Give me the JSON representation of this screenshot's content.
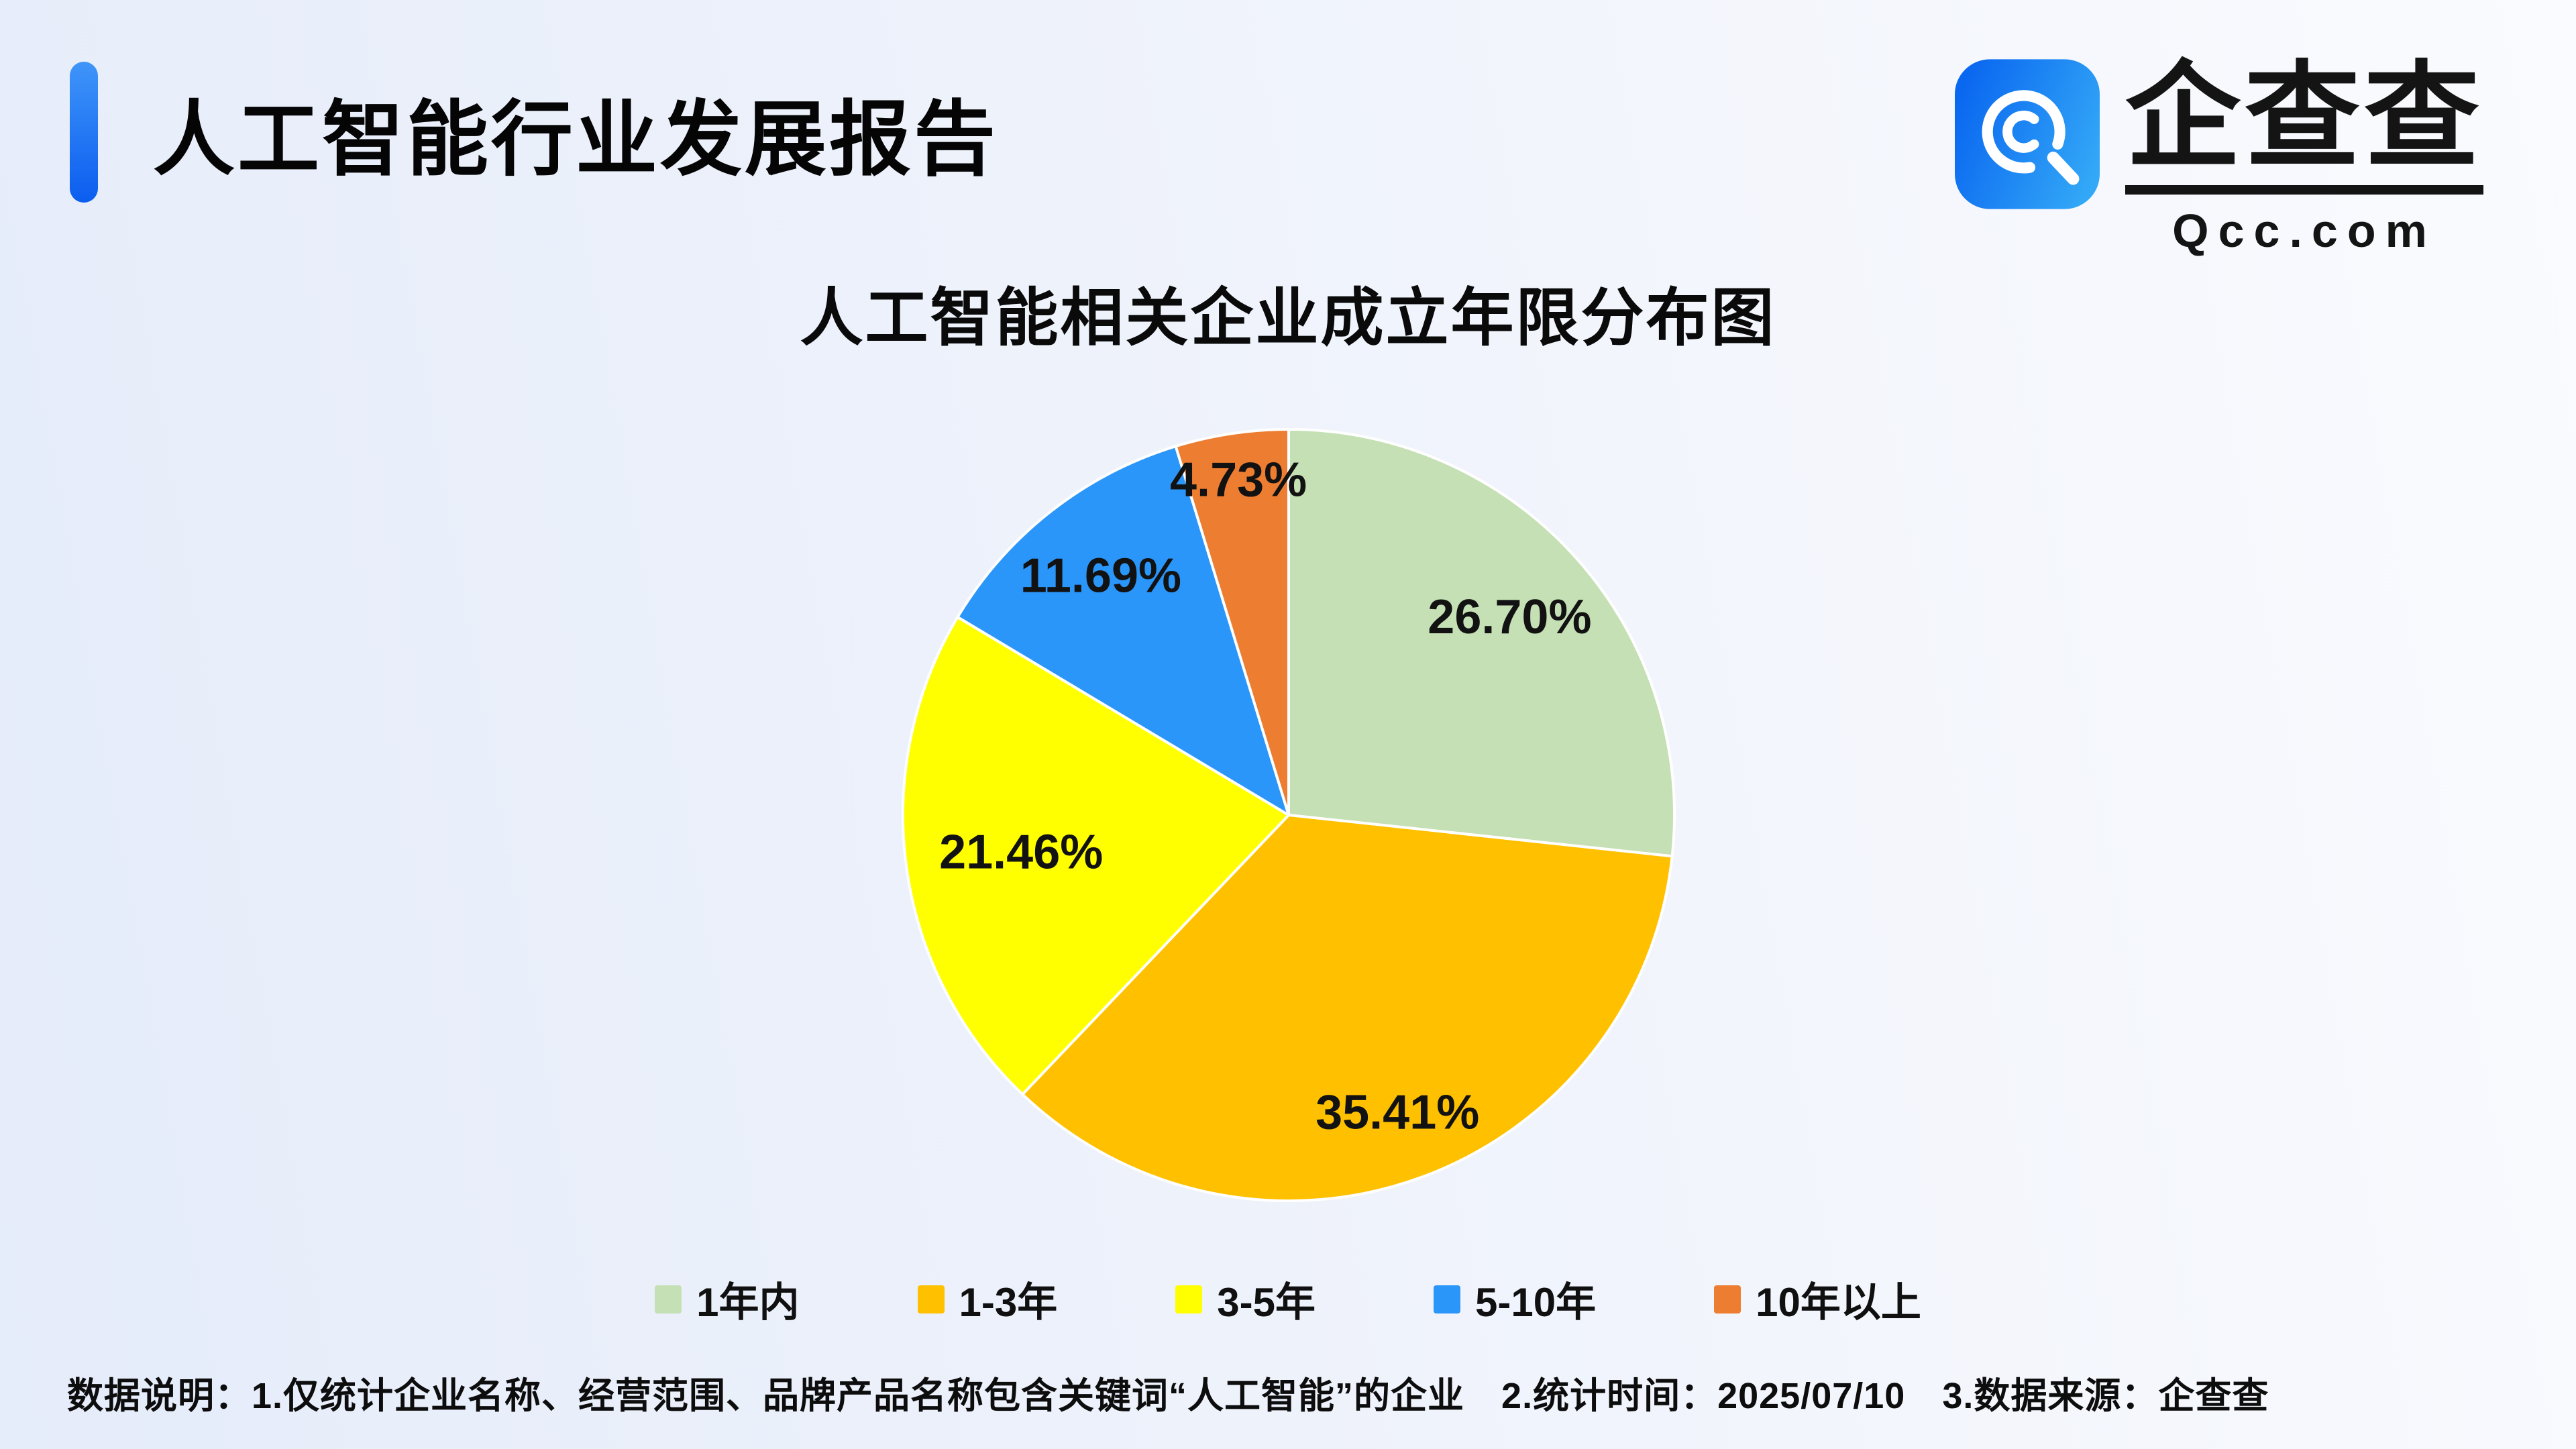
{
  "header": {
    "title": "人工智能行业发展报告"
  },
  "logo": {
    "name": "企查查",
    "domain": "Qcc.com",
    "icon": "qcc-magnifier-icon",
    "icon_gradient_start": "#0a67f0",
    "icon_gradient_end": "#33a8f7"
  },
  "chart_data": {
    "type": "pie",
    "title": "人工智能相关企业成立年限分布图",
    "categories": [
      "1年内",
      "1-3年",
      "3-5年",
      "5-10年",
      "10年以上"
    ],
    "values": [
      26.7,
      35.41,
      21.46,
      11.69,
      4.73
    ],
    "labels": [
      "26.70%",
      "35.41%",
      "21.46%",
      "11.69%",
      "4.73%"
    ],
    "colors": [
      "#c5e0b4",
      "#ffc000",
      "#ffff00",
      "#2b96f9",
      "#ed7d31"
    ],
    "start_angle_deg": 0,
    "direction": "clockwise",
    "legend_position": "bottom",
    "label_radius_fraction": [
      0.77,
      0.82,
      0.7,
      0.79,
      0.88
    ],
    "separator_color": "#ffffff"
  },
  "footer": {
    "note": "数据说明：1.仅统计企业名称、经营范围、品牌产品名称包含关键词“人工智能”的企业　2.统计时间：2025/07/10　3.数据来源：企查查"
  }
}
